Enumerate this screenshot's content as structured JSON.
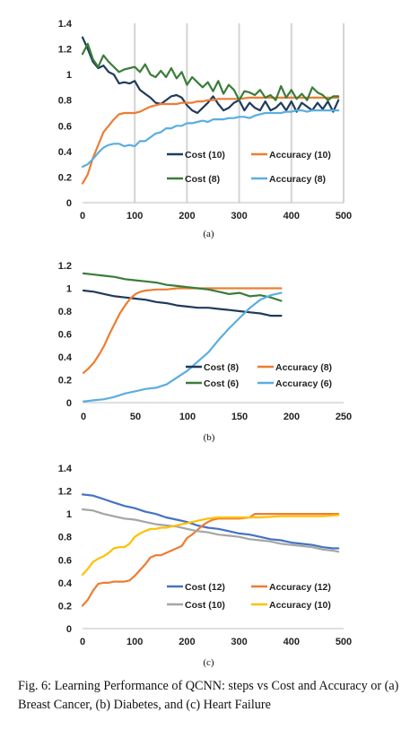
{
  "caption": "Fig. 6: Learning Performance of QCNN: steps vs Cost and Accuracy or (a) Breast Cancer, (b) Diabetes, and (c) Heart Failure",
  "chart_data": [
    {
      "type": "line",
      "sublabel": "(a)",
      "x_ticks": [
        "0",
        "100",
        "200",
        "300",
        "400",
        "500"
      ],
      "y_ticks": [
        "0",
        "0.2",
        "0.4",
        "0.6",
        "0.8",
        "1",
        "1.2",
        "1.4"
      ],
      "xlim": [
        0,
        500
      ],
      "ylim": [
        0,
        1.4
      ],
      "vertical_grid": true,
      "series": [
        {
          "name": "Cost (10)",
          "color": "#1f3b5c",
          "x": [
            0,
            10,
            20,
            30,
            40,
            50,
            60,
            70,
            80,
            90,
            100,
            110,
            120,
            130,
            140,
            150,
            160,
            170,
            180,
            190,
            200,
            210,
            220,
            230,
            240,
            250,
            260,
            270,
            280,
            290,
            300,
            310,
            320,
            330,
            340,
            350,
            360,
            370,
            380,
            390,
            400,
            410,
            420,
            430,
            440,
            450,
            460,
            470,
            480,
            490
          ],
          "y": [
            1.29,
            1.2,
            1.1,
            1.05,
            1.07,
            1.02,
            1.0,
            0.93,
            0.94,
            0.93,
            0.95,
            0.88,
            0.85,
            0.82,
            0.78,
            0.77,
            0.8,
            0.83,
            0.84,
            0.82,
            0.76,
            0.72,
            0.7,
            0.74,
            0.78,
            0.83,
            0.77,
            0.72,
            0.74,
            0.78,
            0.8,
            0.72,
            0.78,
            0.74,
            0.72,
            0.79,
            0.72,
            0.74,
            0.78,
            0.72,
            0.79,
            0.71,
            0.78,
            0.75,
            0.72,
            0.78,
            0.73,
            0.79,
            0.71,
            0.8
          ]
        },
        {
          "name": "Accuracy (10)",
          "color": "#ed7d31",
          "x": [
            0,
            10,
            20,
            30,
            40,
            50,
            60,
            70,
            80,
            90,
            100,
            110,
            120,
            130,
            140,
            150,
            160,
            170,
            180,
            190,
            200,
            210,
            220,
            230,
            240,
            250,
            260,
            270,
            280,
            290,
            300,
            320,
            340,
            360,
            380,
            400,
            420,
            440,
            460,
            480,
            490
          ],
          "y": [
            0.15,
            0.22,
            0.35,
            0.45,
            0.55,
            0.6,
            0.65,
            0.69,
            0.7,
            0.7,
            0.7,
            0.71,
            0.73,
            0.75,
            0.76,
            0.77,
            0.77,
            0.77,
            0.77,
            0.78,
            0.78,
            0.78,
            0.79,
            0.79,
            0.8,
            0.8,
            0.81,
            0.81,
            0.81,
            0.81,
            0.81,
            0.82,
            0.82,
            0.82,
            0.82,
            0.82,
            0.82,
            0.82,
            0.82,
            0.82,
            0.82
          ]
        },
        {
          "name": "Cost (8)",
          "color": "#3a7d3a",
          "x": [
            0,
            10,
            20,
            30,
            40,
            50,
            60,
            70,
            80,
            90,
            100,
            110,
            120,
            130,
            140,
            150,
            160,
            170,
            180,
            190,
            200,
            210,
            220,
            230,
            240,
            250,
            260,
            270,
            280,
            290,
            300,
            310,
            320,
            330,
            340,
            350,
            360,
            370,
            380,
            390,
            400,
            410,
            420,
            430,
            440,
            450,
            460,
            470,
            480,
            490
          ],
          "y": [
            1.16,
            1.24,
            1.12,
            1.06,
            1.15,
            1.1,
            1.06,
            1.02,
            1.04,
            1.05,
            1.06,
            1.02,
            1.08,
            1.0,
            0.98,
            1.03,
            0.98,
            1.05,
            0.97,
            1.02,
            0.92,
            0.98,
            0.94,
            0.9,
            0.94,
            0.87,
            0.95,
            0.85,
            0.92,
            0.88,
            0.8,
            0.87,
            0.86,
            0.84,
            0.88,
            0.82,
            0.84,
            0.8,
            0.91,
            0.82,
            0.88,
            0.81,
            0.85,
            0.8,
            0.9,
            0.86,
            0.84,
            0.8,
            0.83,
            0.83
          ]
        },
        {
          "name": "Accuracy (8)",
          "color": "#5aaee0",
          "x": [
            0,
            10,
            20,
            30,
            40,
            50,
            60,
            70,
            80,
            90,
            100,
            110,
            120,
            130,
            140,
            150,
            160,
            170,
            180,
            190,
            200,
            210,
            220,
            230,
            240,
            250,
            260,
            270,
            280,
            290,
            300,
            310,
            320,
            330,
            340,
            350,
            360,
            370,
            380,
            390,
            400,
            410,
            420,
            430,
            440,
            450,
            460,
            470,
            480,
            490
          ],
          "y": [
            0.28,
            0.3,
            0.34,
            0.39,
            0.43,
            0.45,
            0.46,
            0.46,
            0.44,
            0.45,
            0.44,
            0.48,
            0.48,
            0.51,
            0.54,
            0.55,
            0.58,
            0.58,
            0.6,
            0.6,
            0.62,
            0.62,
            0.63,
            0.64,
            0.63,
            0.65,
            0.65,
            0.65,
            0.66,
            0.66,
            0.67,
            0.67,
            0.66,
            0.68,
            0.69,
            0.7,
            0.7,
            0.7,
            0.7,
            0.71,
            0.71,
            0.72,
            0.72,
            0.71,
            0.72,
            0.72,
            0.72,
            0.72,
            0.72,
            0.72
          ]
        }
      ]
    },
    {
      "type": "line",
      "sublabel": "(b)",
      "x_ticks": [
        "0",
        "50",
        "100",
        "150",
        "200",
        "250"
      ],
      "y_ticks": [
        "0",
        "0.2",
        "0.4",
        "0.6",
        "0.8",
        "1",
        "1.2"
      ],
      "xlim": [
        0,
        250
      ],
      "ylim": [
        0,
        1.2
      ],
      "vertical_grid": false,
      "series": [
        {
          "name": "Cost (8)",
          "color": "#1f3b5c",
          "x": [
            0,
            10,
            20,
            30,
            40,
            50,
            60,
            70,
            80,
            90,
            100,
            110,
            120,
            130,
            140,
            150,
            160,
            170,
            180,
            190
          ],
          "y": [
            0.98,
            0.97,
            0.95,
            0.93,
            0.92,
            0.91,
            0.9,
            0.88,
            0.87,
            0.85,
            0.84,
            0.83,
            0.83,
            0.82,
            0.81,
            0.8,
            0.79,
            0.78,
            0.76,
            0.76
          ]
        },
        {
          "name": "Accuracy (8)",
          "color": "#ed7d31",
          "x": [
            0,
            5,
            10,
            15,
            20,
            25,
            30,
            35,
            40,
            45,
            50,
            55,
            60,
            70,
            80,
            90,
            100,
            110,
            120,
            140,
            160,
            180,
            190
          ],
          "y": [
            0.26,
            0.3,
            0.35,
            0.42,
            0.5,
            0.6,
            0.69,
            0.78,
            0.85,
            0.91,
            0.95,
            0.97,
            0.98,
            0.99,
            0.99,
            1.0,
            1.0,
            1.0,
            1.0,
            1.0,
            1.0,
            1.0,
            1.0
          ]
        },
        {
          "name": "Cost (6)",
          "color": "#3a7d3a",
          "x": [
            0,
            10,
            20,
            30,
            40,
            50,
            60,
            70,
            80,
            90,
            100,
            110,
            120,
            130,
            140,
            150,
            160,
            170,
            180,
            190
          ],
          "y": [
            1.13,
            1.12,
            1.11,
            1.1,
            1.08,
            1.07,
            1.06,
            1.05,
            1.03,
            1.02,
            1.01,
            1.0,
            0.99,
            0.97,
            0.95,
            0.96,
            0.93,
            0.94,
            0.92,
            0.89
          ]
        },
        {
          "name": "Accuracy (6)",
          "color": "#5aaee0",
          "x": [
            0,
            10,
            20,
            30,
            40,
            50,
            60,
            70,
            80,
            90,
            100,
            110,
            120,
            130,
            140,
            150,
            160,
            170,
            180,
            190
          ],
          "y": [
            0.01,
            0.02,
            0.03,
            0.05,
            0.08,
            0.1,
            0.12,
            0.13,
            0.16,
            0.22,
            0.28,
            0.36,
            0.44,
            0.55,
            0.65,
            0.74,
            0.83,
            0.9,
            0.94,
            0.96
          ]
        }
      ]
    },
    {
      "type": "line",
      "sublabel": "(c)",
      "x_ticks": [
        "0",
        "100",
        "200",
        "300",
        "400",
        "500"
      ],
      "y_ticks": [
        "0",
        "0.2",
        "0.4",
        "0.6",
        "0.8",
        "1",
        "1.2",
        "1.4"
      ],
      "xlim": [
        0,
        500
      ],
      "ylim": [
        0,
        1.4
      ],
      "vertical_grid": false,
      "series": [
        {
          "name": "Cost (12)",
          "color": "#4472c4",
          "x": [
            0,
            20,
            40,
            60,
            80,
            100,
            120,
            140,
            160,
            180,
            200,
            220,
            240,
            260,
            280,
            300,
            320,
            340,
            360,
            380,
            400,
            420,
            440,
            460,
            480,
            490
          ],
          "y": [
            1.17,
            1.16,
            1.13,
            1.1,
            1.07,
            1.05,
            1.02,
            1.0,
            0.97,
            0.95,
            0.93,
            0.9,
            0.88,
            0.87,
            0.85,
            0.83,
            0.82,
            0.8,
            0.78,
            0.77,
            0.75,
            0.74,
            0.73,
            0.71,
            0.7,
            0.7
          ]
        },
        {
          "name": "Accuracy (12)",
          "color": "#ed7d31",
          "x": [
            0,
            10,
            20,
            30,
            40,
            50,
            60,
            70,
            80,
            90,
            100,
            110,
            120,
            130,
            140,
            150,
            160,
            170,
            180,
            190,
            200,
            210,
            220,
            230,
            240,
            250,
            260,
            280,
            300,
            320,
            330,
            340,
            360,
            400,
            440,
            480,
            490
          ],
          "y": [
            0.2,
            0.25,
            0.33,
            0.39,
            0.4,
            0.4,
            0.41,
            0.41,
            0.41,
            0.42,
            0.46,
            0.51,
            0.56,
            0.62,
            0.64,
            0.64,
            0.66,
            0.68,
            0.7,
            0.72,
            0.79,
            0.82,
            0.86,
            0.9,
            0.93,
            0.95,
            0.96,
            0.96,
            0.96,
            0.97,
            1.0,
            1.0,
            1.0,
            1.0,
            1.0,
            1.0,
            1.0
          ]
        },
        {
          "name": "Cost (10)",
          "color": "#a5a5a5",
          "x": [
            0,
            20,
            40,
            60,
            80,
            100,
            120,
            140,
            160,
            180,
            200,
            220,
            240,
            260,
            280,
            300,
            320,
            340,
            360,
            380,
            400,
            420,
            440,
            460,
            480,
            490
          ],
          "y": [
            1.04,
            1.03,
            1.0,
            0.98,
            0.96,
            0.95,
            0.93,
            0.91,
            0.9,
            0.89,
            0.87,
            0.85,
            0.84,
            0.82,
            0.81,
            0.8,
            0.78,
            0.77,
            0.76,
            0.74,
            0.73,
            0.72,
            0.71,
            0.69,
            0.68,
            0.67
          ]
        },
        {
          "name": "Accuracy (10)",
          "color": "#ffc000",
          "x": [
            0,
            10,
            20,
            30,
            40,
            50,
            60,
            70,
            80,
            90,
            100,
            110,
            120,
            130,
            140,
            150,
            160,
            170,
            180,
            190,
            200,
            220,
            240,
            260,
            280,
            300,
            340,
            380,
            420,
            460,
            490
          ],
          "y": [
            0.47,
            0.52,
            0.58,
            0.61,
            0.63,
            0.66,
            0.7,
            0.71,
            0.71,
            0.74,
            0.8,
            0.83,
            0.85,
            0.87,
            0.87,
            0.88,
            0.88,
            0.89,
            0.9,
            0.91,
            0.92,
            0.94,
            0.96,
            0.97,
            0.97,
            0.97,
            0.97,
            0.98,
            0.98,
            0.98,
            0.99
          ]
        }
      ]
    }
  ]
}
